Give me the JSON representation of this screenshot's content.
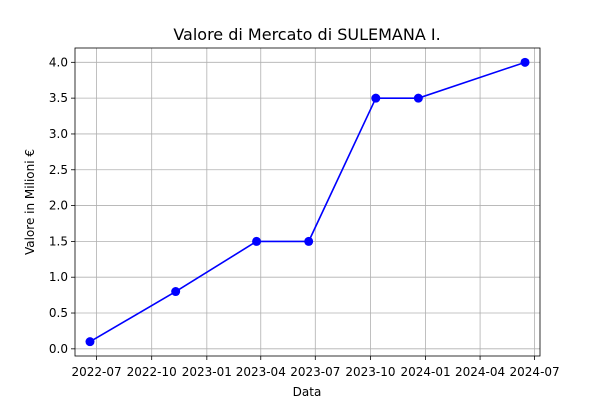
{
  "chart_data": {
    "type": "line",
    "title": "Valore di Mercato di SULEMANA I.",
    "xlabel": "Data",
    "ylabel": "Valore in Milioni €",
    "x": [
      "2022-06-20",
      "2022-11-10",
      "2023-03-25",
      "2023-06-20",
      "2023-10-10",
      "2023-12-20",
      "2024-06-15"
    ],
    "series": [
      {
        "values": [
          0.1,
          0.8,
          1.5,
          1.5,
          3.5,
          3.5,
          4.0
        ]
      }
    ],
    "ylim": [
      -0.1,
      4.2
    ],
    "xlim": [
      "2022-05-26",
      "2024-07-10"
    ],
    "x_ticks": [
      "2022-07-01",
      "2022-10-01",
      "2023-01-01",
      "2023-04-01",
      "2023-07-01",
      "2023-10-01",
      "2024-01-01",
      "2024-04-01",
      "2024-07-01"
    ],
    "x_tick_labels": [
      "2022-07",
      "2022-10",
      "2023-01",
      "2023-04",
      "2023-07",
      "2023-10",
      "2024-01",
      "2024-04",
      "2024-07"
    ],
    "y_ticks": [
      0.0,
      0.5,
      1.0,
      1.5,
      2.0,
      2.5,
      3.0,
      3.5,
      4.0
    ],
    "y_tick_labels": [
      "0.0",
      "0.5",
      "1.0",
      "1.5",
      "2.0",
      "2.5",
      "3.0",
      "3.5",
      "4.0"
    ],
    "grid": true,
    "line_color": "#0000ff",
    "marker": "circle"
  }
}
